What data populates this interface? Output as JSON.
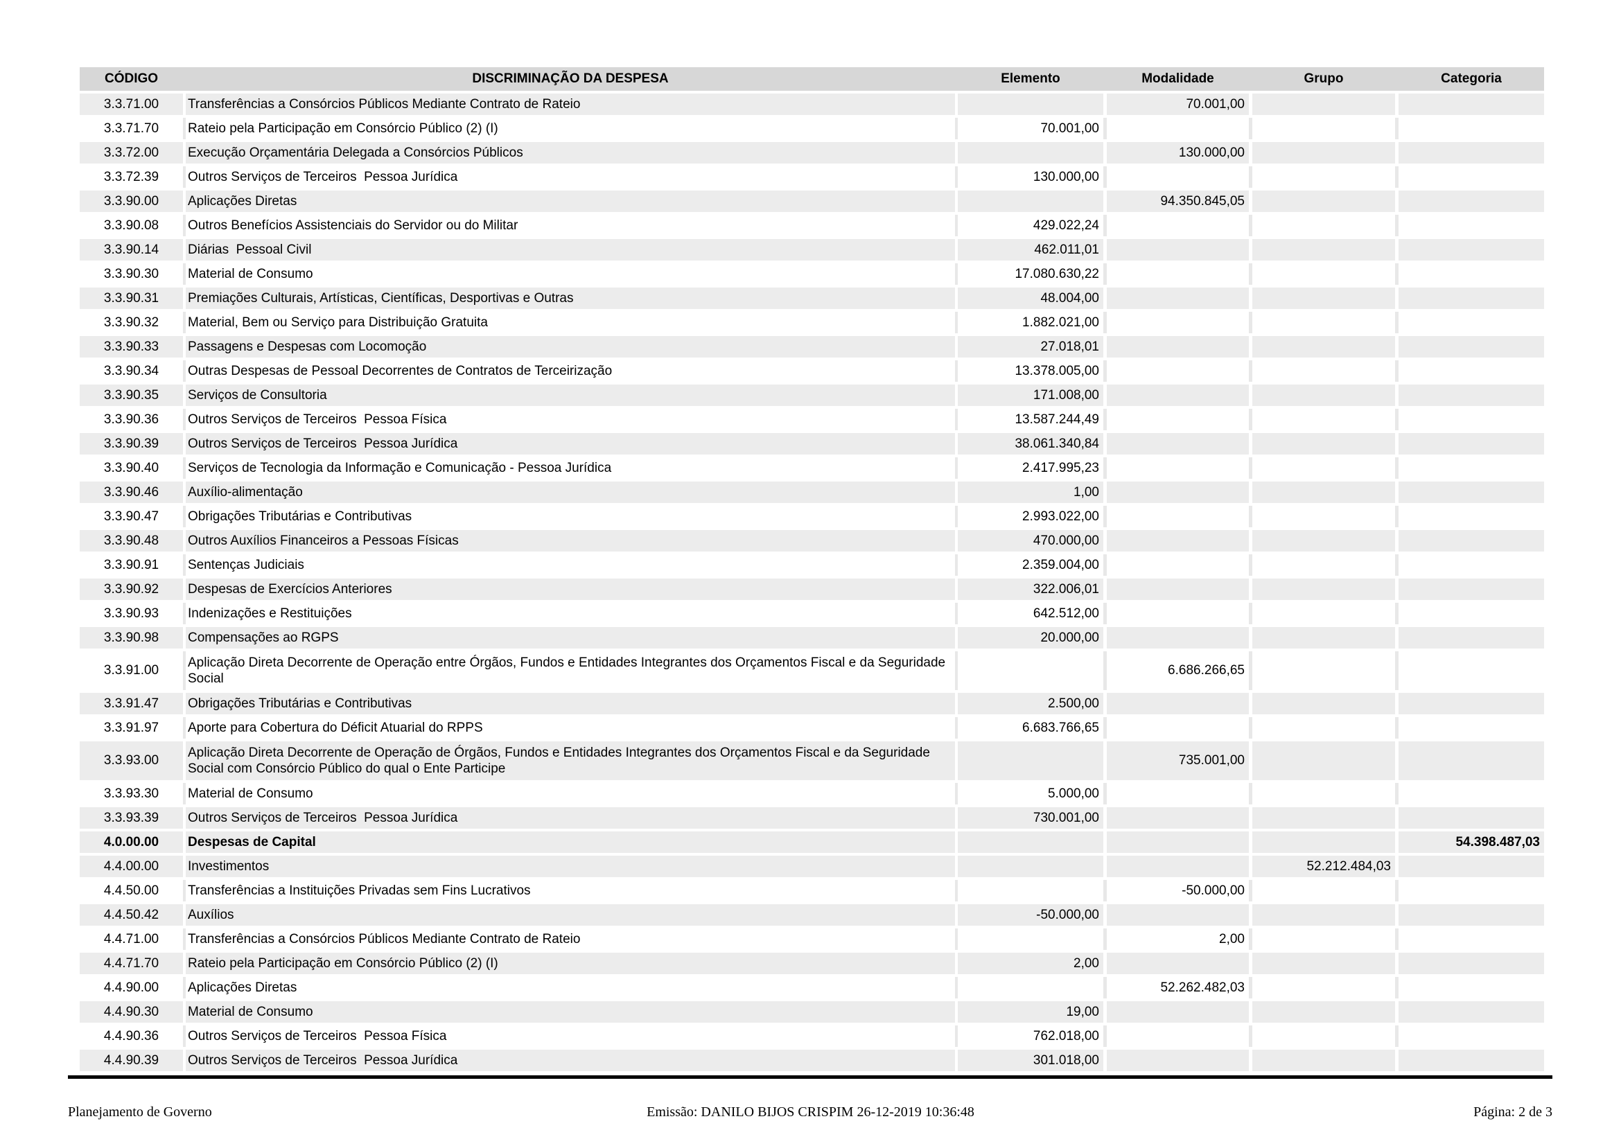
{
  "colors": {
    "header_bg": "#d7d7d7",
    "row_shade": "#ececec",
    "gutter_light": "#e8e8e8",
    "rule_color": "#000000"
  },
  "table": {
    "columns": [
      {
        "label": "CÓDIGO"
      },
      {
        "label": "DISCRIMINAÇÃO DA DESPESA"
      },
      {
        "label": "Elemento"
      },
      {
        "label": "Modalidade"
      },
      {
        "label": "Grupo"
      },
      {
        "label": "Categoria"
      }
    ],
    "rows": [
      {
        "code": "3.3.71.00",
        "description": "Transferências a Consórcios Públicos Mediante Contrato de Rateio",
        "elemento": "",
        "modalidade": "70.001,00",
        "grupo": "",
        "categoria": "",
        "shaded": true,
        "bold": false,
        "tall": false
      },
      {
        "code": "3.3.71.70",
        "description": "Rateio pela Participação em Consórcio Público (2) (I)",
        "elemento": "70.001,00",
        "modalidade": "",
        "grupo": "",
        "categoria": "",
        "shaded": false,
        "bold": false,
        "tall": false
      },
      {
        "code": "3.3.72.00",
        "description": "Execução Orçamentária Delegada a Consórcios Públicos",
        "elemento": "",
        "modalidade": "130.000,00",
        "grupo": "",
        "categoria": "",
        "shaded": true,
        "bold": false,
        "tall": false
      },
      {
        "code": "3.3.72.39",
        "description": "Outros Serviços de Terceiros  Pessoa Jurídica",
        "elemento": "130.000,00",
        "modalidade": "",
        "grupo": "",
        "categoria": "",
        "shaded": false,
        "bold": false,
        "tall": false
      },
      {
        "code": "3.3.90.00",
        "description": "Aplicações Diretas",
        "elemento": "",
        "modalidade": "94.350.845,05",
        "grupo": "",
        "categoria": "",
        "shaded": true,
        "bold": false,
        "tall": false
      },
      {
        "code": "3.3.90.08",
        "description": "Outros Benefícios Assistenciais do Servidor ou do Militar",
        "elemento": "429.022,24",
        "modalidade": "",
        "grupo": "",
        "categoria": "",
        "shaded": false,
        "bold": false,
        "tall": false
      },
      {
        "code": "3.3.90.14",
        "description": "Diárias  Pessoal Civil",
        "elemento": "462.011,01",
        "modalidade": "",
        "grupo": "",
        "categoria": "",
        "shaded": true,
        "bold": false,
        "tall": false
      },
      {
        "code": "3.3.90.30",
        "description": "Material de Consumo",
        "elemento": "17.080.630,22",
        "modalidade": "",
        "grupo": "",
        "categoria": "",
        "shaded": false,
        "bold": false,
        "tall": false
      },
      {
        "code": "3.3.90.31",
        "description": "Premiações Culturais, Artísticas, Científicas, Desportivas e Outras",
        "elemento": "48.004,00",
        "modalidade": "",
        "grupo": "",
        "categoria": "",
        "shaded": true,
        "bold": false,
        "tall": false
      },
      {
        "code": "3.3.90.32",
        "description": "Material, Bem ou Serviço para Distribuição Gratuita",
        "elemento": "1.882.021,00",
        "modalidade": "",
        "grupo": "",
        "categoria": "",
        "shaded": false,
        "bold": false,
        "tall": false
      },
      {
        "code": "3.3.90.33",
        "description": "Passagens e Despesas com Locomoção",
        "elemento": "27.018,01",
        "modalidade": "",
        "grupo": "",
        "categoria": "",
        "shaded": true,
        "bold": false,
        "tall": false
      },
      {
        "code": "3.3.90.34",
        "description": "Outras Despesas de Pessoal Decorrentes de Contratos de Terceirização",
        "elemento": "13.378.005,00",
        "modalidade": "",
        "grupo": "",
        "categoria": "",
        "shaded": false,
        "bold": false,
        "tall": false
      },
      {
        "code": "3.3.90.35",
        "description": "Serviços de Consultoria",
        "elemento": "171.008,00",
        "modalidade": "",
        "grupo": "",
        "categoria": "",
        "shaded": true,
        "bold": false,
        "tall": false
      },
      {
        "code": "3.3.90.36",
        "description": "Outros Serviços de Terceiros  Pessoa Física",
        "elemento": "13.587.244,49",
        "modalidade": "",
        "grupo": "",
        "categoria": "",
        "shaded": false,
        "bold": false,
        "tall": false
      },
      {
        "code": "3.3.90.39",
        "description": "Outros Serviços de Terceiros  Pessoa Jurídica",
        "elemento": "38.061.340,84",
        "modalidade": "",
        "grupo": "",
        "categoria": "",
        "shaded": true,
        "bold": false,
        "tall": false
      },
      {
        "code": "3.3.90.40",
        "description": "Serviços de Tecnologia da Informação e Comunicação - Pessoa Jurídica",
        "elemento": "2.417.995,23",
        "modalidade": "",
        "grupo": "",
        "categoria": "",
        "shaded": false,
        "bold": false,
        "tall": false
      },
      {
        "code": "3.3.90.46",
        "description": "Auxílio-alimentação",
        "elemento": "1,00",
        "modalidade": "",
        "grupo": "",
        "categoria": "",
        "shaded": true,
        "bold": false,
        "tall": false
      },
      {
        "code": "3.3.90.47",
        "description": "Obrigações Tributárias e Contributivas",
        "elemento": "2.993.022,00",
        "modalidade": "",
        "grupo": "",
        "categoria": "",
        "shaded": false,
        "bold": false,
        "tall": false
      },
      {
        "code": "3.3.90.48",
        "description": "Outros Auxílios Financeiros a Pessoas Físicas",
        "elemento": "470.000,00",
        "modalidade": "",
        "grupo": "",
        "categoria": "",
        "shaded": true,
        "bold": false,
        "tall": false
      },
      {
        "code": "3.3.90.91",
        "description": "Sentenças Judiciais",
        "elemento": "2.359.004,00",
        "modalidade": "",
        "grupo": "",
        "categoria": "",
        "shaded": false,
        "bold": false,
        "tall": false
      },
      {
        "code": "3.3.90.92",
        "description": "Despesas de Exercícios Anteriores",
        "elemento": "322.006,01",
        "modalidade": "",
        "grupo": "",
        "categoria": "",
        "shaded": true,
        "bold": false,
        "tall": false
      },
      {
        "code": "3.3.90.93",
        "description": "Indenizações e Restituições",
        "elemento": "642.512,00",
        "modalidade": "",
        "grupo": "",
        "categoria": "",
        "shaded": false,
        "bold": false,
        "tall": false
      },
      {
        "code": "3.3.90.98",
        "description": "Compensações ao RGPS",
        "elemento": "20.000,00",
        "modalidade": "",
        "grupo": "",
        "categoria": "",
        "shaded": true,
        "bold": false,
        "tall": false
      },
      {
        "code": "3.3.91.00",
        "description": "Aplicação Direta Decorrente de Operação entre Órgãos, Fundos e Entidades Integrantes dos Orçamentos Fiscal e da Seguridade Social",
        "elemento": "",
        "modalidade": "6.686.266,65",
        "grupo": "",
        "categoria": "",
        "shaded": false,
        "bold": false,
        "tall": true
      },
      {
        "code": "3.3.91.47",
        "description": "Obrigações Tributárias e Contributivas",
        "elemento": "2.500,00",
        "modalidade": "",
        "grupo": "",
        "categoria": "",
        "shaded": true,
        "bold": false,
        "tall": false
      },
      {
        "code": "3.3.91.97",
        "description": "Aporte para Cobertura do Déficit Atuarial do RPPS",
        "elemento": "6.683.766,65",
        "modalidade": "",
        "grupo": "",
        "categoria": "",
        "shaded": false,
        "bold": false,
        "tall": false
      },
      {
        "code": "3.3.93.00",
        "description": "Aplicação Direta Decorrente de Operação de Órgãos, Fundos e Entidades Integrantes dos Orçamentos Fiscal e da Seguridade Social com Consórcio Público do qual o Ente Participe",
        "elemento": "",
        "modalidade": "735.001,00",
        "grupo": "",
        "categoria": "",
        "shaded": true,
        "bold": false,
        "tall": true
      },
      {
        "code": "3.3.93.30",
        "description": "Material de Consumo",
        "elemento": "5.000,00",
        "modalidade": "",
        "grupo": "",
        "categoria": "",
        "shaded": false,
        "bold": false,
        "tall": false
      },
      {
        "code": "3.3.93.39",
        "description": "Outros Serviços de Terceiros  Pessoa Jurídica",
        "elemento": "730.001,00",
        "modalidade": "",
        "grupo": "",
        "categoria": "",
        "shaded": true,
        "bold": false,
        "tall": false
      },
      {
        "code": "4.0.00.00",
        "description": "Despesas de Capital",
        "elemento": "",
        "modalidade": "",
        "grupo": "",
        "categoria": "54.398.487,03",
        "shaded": true,
        "bold": true,
        "tall": false
      },
      {
        "code": "4.4.00.00",
        "description": "Investimentos",
        "elemento": "",
        "modalidade": "",
        "grupo": "52.212.484,03",
        "categoria": "",
        "shaded": true,
        "bold": false,
        "tall": false
      },
      {
        "code": "4.4.50.00",
        "description": "Transferências a Instituições Privadas sem Fins Lucrativos",
        "elemento": "",
        "modalidade": "-50.000,00",
        "grupo": "",
        "categoria": "",
        "shaded": false,
        "bold": false,
        "tall": false
      },
      {
        "code": "4.4.50.42",
        "description": "Auxílios",
        "elemento": "-50.000,00",
        "modalidade": "",
        "grupo": "",
        "categoria": "",
        "shaded": true,
        "bold": false,
        "tall": false
      },
      {
        "code": "4.4.71.00",
        "description": "Transferências a Consórcios Públicos Mediante Contrato de Rateio",
        "elemento": "",
        "modalidade": "2,00",
        "grupo": "",
        "categoria": "",
        "shaded": false,
        "bold": false,
        "tall": false
      },
      {
        "code": "4.4.71.70",
        "description": "Rateio pela Participação em Consórcio Público (2) (I)",
        "elemento": "2,00",
        "modalidade": "",
        "grupo": "",
        "categoria": "",
        "shaded": true,
        "bold": false,
        "tall": false
      },
      {
        "code": "4.4.90.00",
        "description": "Aplicações Diretas",
        "elemento": "",
        "modalidade": "52.262.482,03",
        "grupo": "",
        "categoria": "",
        "shaded": false,
        "bold": false,
        "tall": false
      },
      {
        "code": "4.4.90.30",
        "description": "Material de Consumo",
        "elemento": "19,00",
        "modalidade": "",
        "grupo": "",
        "categoria": "",
        "shaded": true,
        "bold": false,
        "tall": false
      },
      {
        "code": "4.4.90.36",
        "description": "Outros Serviços de Terceiros  Pessoa Física",
        "elemento": "762.018,00",
        "modalidade": "",
        "grupo": "",
        "categoria": "",
        "shaded": false,
        "bold": false,
        "tall": false
      },
      {
        "code": "4.4.90.39",
        "description": "Outros Serviços de Terceiros  Pessoa Jurídica",
        "elemento": "301.018,00",
        "modalidade": "",
        "grupo": "",
        "categoria": "",
        "shaded": true,
        "bold": false,
        "tall": false
      }
    ]
  },
  "footer": {
    "left": "Planejamento de Governo",
    "center": "Emissão: DANILO BIJOS CRISPIM 26-12-2019 10:36:48",
    "right": "Página: 2 de 3"
  }
}
